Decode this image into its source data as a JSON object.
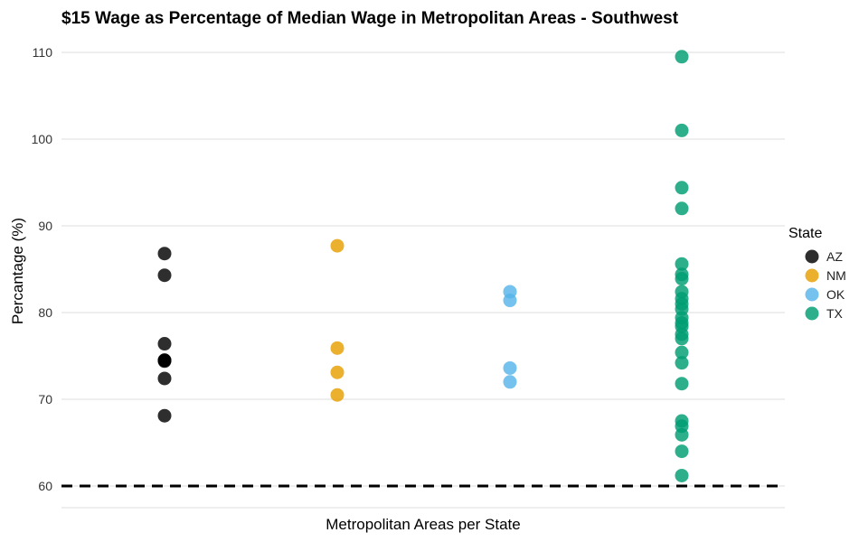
{
  "chart_data": {
    "type": "scatter",
    "title": "$15 Wage as Percentage of Median Wage in Metropolitan Areas - Southwest",
    "xlabel": "Metropolitan Areas per State",
    "ylabel": "Percantage (%)",
    "ylim": [
      57.5,
      112
    ],
    "yticks": [
      60,
      70,
      80,
      90,
      100,
      110
    ],
    "grid": true,
    "reference_line": {
      "y": 60,
      "style": "dashed"
    },
    "legend": {
      "title": "State",
      "position": "right"
    },
    "series": [
      {
        "name": "AZ",
        "color": "#000000",
        "values": [
          86.8,
          84.3,
          76.4,
          74.5,
          74.5,
          74.4,
          72.4,
          68.1
        ]
      },
      {
        "name": "NM",
        "color": "#E69F00",
        "values": [
          87.7,
          75.9,
          73.1,
          70.5
        ]
      },
      {
        "name": "OK",
        "color": "#56B4E9",
        "values": [
          82.4,
          81.4,
          73.6,
          72.0
        ]
      },
      {
        "name": "TX",
        "color": "#009E73",
        "values": [
          109.5,
          101.0,
          94.4,
          92.0,
          85.6,
          84.4,
          83.9,
          82.4,
          81.6,
          81.0,
          80.4,
          79.4,
          78.8,
          78.4,
          77.5,
          77.0,
          75.4,
          74.2,
          71.8,
          67.5,
          66.9,
          65.9,
          64.0,
          61.2
        ]
      }
    ]
  }
}
